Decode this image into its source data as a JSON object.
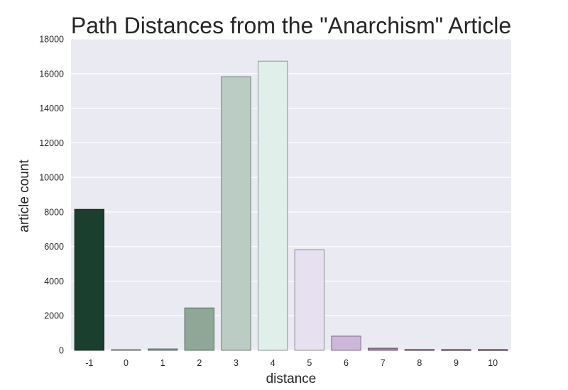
{
  "chart_data": {
    "type": "bar",
    "title": "Path Distances from the \"Anarchism\" Article",
    "xlabel": "distance",
    "ylabel": "article count",
    "categories": [
      "-1",
      "0",
      "1",
      "2",
      "3",
      "4",
      "5",
      "6",
      "7",
      "8",
      "9",
      "10"
    ],
    "values": [
      8150,
      20,
      80,
      2450,
      15820,
      16720,
      5820,
      820,
      120,
      40,
      10,
      5
    ],
    "ylim": [
      0,
      18000
    ],
    "yticks": [
      0,
      2000,
      4000,
      6000,
      8000,
      10000,
      12000,
      14000,
      16000,
      18000
    ],
    "grid": true,
    "legend": "none",
    "background_color": "#EAEAF2",
    "bar_colors": [
      "#1A3F2E",
      "#8FA797",
      "#8FA797",
      "#8FA797",
      "#BACCC4",
      "#E1EFEA",
      "#E7E0F1",
      "#CDB7D9",
      "#A77FAE",
      "#7E4B7C",
      "#4F2E4D",
      "#3A223A"
    ]
  }
}
